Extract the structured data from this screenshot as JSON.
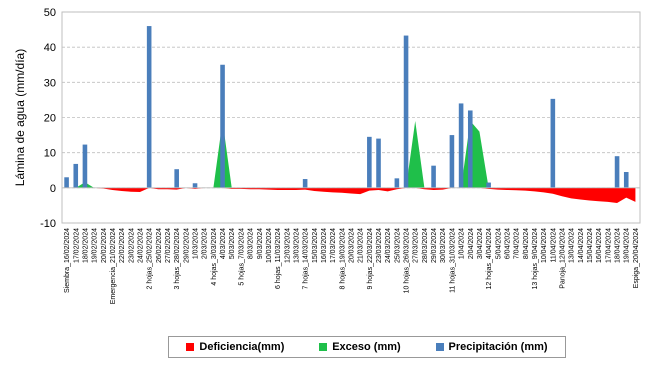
{
  "chart_data": {
    "type": "area",
    "ylabel": "Lámina de agua (mm/día)",
    "ylim": [
      -10,
      50
    ],
    "yticks": [
      -10,
      0,
      10,
      20,
      30,
      40,
      50
    ],
    "grid": true,
    "legend_position": "bottom",
    "categories": [
      "Siembra_16/02/2024",
      "17/02/2024",
      "18/02/2024",
      "19/02/2024",
      "20/02/2024",
      "Emergencia_21/02/2024",
      "22/02/2024",
      "23/02/2024",
      "24/02/2024",
      "2 hojas_25/02/2024",
      "26/02/2024",
      "27/02/2024",
      "3 hojas_28/02/2024",
      "29/02/2024",
      "1/03/2024",
      "2/03/2024",
      "4 hojas_3/03/2024",
      "4/03/2024",
      "5/03/2024",
      "5 hojas_7/03/2024",
      "8/03/2024",
      "9/03/2024",
      "10/03/2024",
      "6 hojas_11/03/2024",
      "12/03/2024",
      "13/03/2024",
      "7 hojas_14/03/2024",
      "15/03/2024",
      "16/03/2024",
      "17/03/2024",
      "8 hojas_19/03/2024",
      "20/03/2024",
      "21/03/2024",
      "9 hojas_22/03/2024",
      "23/03/2024",
      "24/03/2024",
      "25/03/2024",
      "10 hojas_26/03/2024",
      "27/03/2024",
      "28/03/2024",
      "29/03/2024",
      "30/03/2024",
      "11 hojas_31/03/2024",
      "1/04/2024",
      "2/04/2024",
      "3/04/2024",
      "12 hojas_4/04/2024",
      "5/04/2024",
      "6/04/2024",
      "7/04/2024",
      "8/04/2024",
      "13 hojas_9/04/2024",
      "10/04/2024",
      "11/04/2024",
      "Panoja_12/04/2024",
      "13/04/2024",
      "14/04/2024",
      "15/04/2024",
      "16/04/2024",
      "17/04/2024",
      "18/04/2024",
      "19/04/2024",
      "Espiga_20/04/2024"
    ],
    "series": [
      {
        "name": "Deficiencia(mm)",
        "color": "#ff0000",
        "values": [
          0,
          0,
          0,
          0,
          -0.2,
          -0.6,
          -0.9,
          -1.1,
          -1.2,
          0,
          -0.4,
          -0.4,
          -0.5,
          0,
          -0.3,
          0,
          0,
          0,
          -0.3,
          -0.3,
          -0.4,
          -0.4,
          -0.5,
          -0.6,
          -0.6,
          -0.6,
          -0.5,
          -0.9,
          -1.1,
          -1.3,
          -1.4,
          -1.6,
          -1.8,
          -0.8,
          -0.6,
          -1.0,
          -0.4,
          0,
          0,
          -0.4,
          -0.6,
          -0.5,
          0,
          0,
          0,
          0,
          -0.3,
          -0.5,
          -0.6,
          -0.7,
          -0.8,
          -1.0,
          -1.3,
          -1.7,
          -2.4,
          -3.0,
          -3.3,
          -3.6,
          -3.8,
          -4.0,
          -4.3,
          -2.8,
          -4.0
        ]
      },
      {
        "name": "Exceso (mm)",
        "color": "#1fbf4a",
        "values": [
          0,
          0,
          1.6,
          0,
          0,
          0,
          0,
          0,
          0,
          0,
          0,
          0,
          0,
          0,
          0,
          0,
          0,
          19,
          0,
          0,
          0,
          0,
          0,
          0,
          0,
          0,
          0,
          0,
          0,
          0,
          0,
          0,
          0,
          0,
          0,
          0,
          0,
          0,
          19,
          0,
          0,
          0,
          0,
          0,
          19,
          16,
          0,
          0,
          0,
          0,
          0,
          0,
          0,
          0,
          0,
          0,
          0,
          0,
          0,
          0,
          0,
          0,
          0
        ]
      },
      {
        "name": "Precipitación (mm)",
        "color": "#4a7ebb",
        "values": [
          3,
          6.8,
          12.3,
          0,
          0,
          0,
          0,
          0,
          0,
          46,
          0,
          0,
          5.3,
          0,
          1.3,
          0,
          0,
          35,
          0,
          0,
          0,
          0,
          0,
          0,
          0,
          0,
          2.5,
          0,
          0,
          0,
          0,
          0,
          0,
          14.5,
          14,
          0,
          2.7,
          43.3,
          0,
          0,
          6.3,
          0,
          15,
          24,
          22,
          0,
          1.5,
          0,
          0,
          0,
          0,
          0,
          0,
          25.3,
          0,
          0,
          0,
          0,
          0,
          0,
          9,
          4.5,
          0
        ]
      }
    ]
  },
  "legend": [
    {
      "label": "Deficiencia(mm)",
      "color": "#ff0000"
    },
    {
      "label": "Exceso (mm)",
      "color": "#1fbf4a"
    },
    {
      "label": "Precipitación (mm)",
      "color": "#4a7ebb"
    }
  ]
}
